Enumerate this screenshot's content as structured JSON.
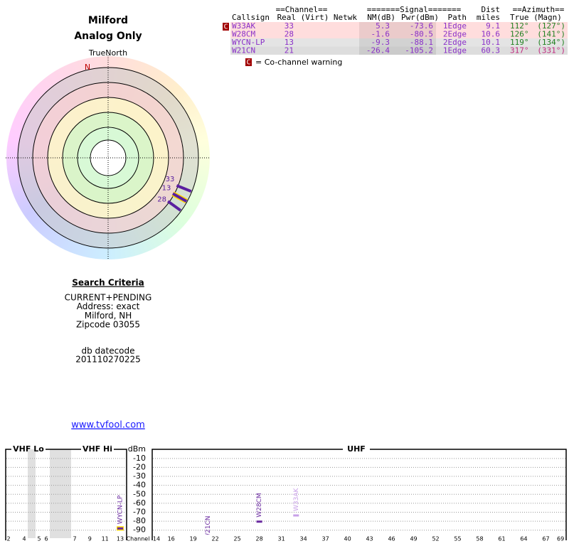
{
  "header": {
    "title": "Milford",
    "subtitle": "Analog Only"
  },
  "polar": {
    "north_label": "TrueNorth",
    "n": "N"
  },
  "search": {
    "title": "Search Criteria",
    "lines": [
      "CURRENT+PENDING",
      "Address: exact",
      "Milford, NH",
      "Zipcode 03055"
    ],
    "datecode_label": "db datecode",
    "datecode": "201110270225"
  },
  "link": "www.tvfool.com",
  "table": {
    "group_headers": [
      "==Channel==",
      "=======Signal=======",
      "Dist",
      "==Azimuth=="
    ],
    "headers": [
      "Callsign",
      "Real (Virt)",
      "Netwk",
      "NM(dB)",
      "Pwr(dBm)",
      "Path",
      "miles",
      "True (Magn)"
    ],
    "rows": [
      [
        "W33AK",
        33,
        5.3,
        -73.6,
        "1Edge",
        9.1,
        {
          "value": 112,
          "label": "112°"
        },
        "(127°)"
      ],
      [
        "W28CM",
        28,
        -1.6,
        -80.5,
        "2Edge",
        10.6,
        {
          "value": 126,
          "label": "126°"
        },
        "(141°)"
      ],
      [
        "WYCN-LP",
        13,
        -9.3,
        -88.1,
        "2Edge",
        10.1,
        {
          "value": 119,
          "label": "119°"
        },
        "(134°)"
      ],
      [
        "W21CN",
        21,
        -26.4,
        -105.2,
        "1Edge",
        60.3,
        {
          "value": 317,
          "label": "317°"
        },
        "(331°)"
      ]
    ],
    "warning_marker": "C",
    "legend": "= Co-channel warning"
  },
  "spectrum": {
    "sections": [
      "VHF Lo",
      "VHF Hi",
      "UHF"
    ],
    "y_label": "dBm",
    "x_label": "Channel",
    "ylim": [
      -95,
      -3
    ],
    "yticks": [
      -10,
      -20,
      -30,
      -40,
      -50,
      -60,
      -70,
      -80,
      -90
    ],
    "channel_ticks_vhf": [
      2,
      4,
      5,
      6,
      7,
      9,
      11,
      13
    ],
    "channel_ticks_uhf": [
      14,
      16,
      19,
      22,
      25,
      28,
      31,
      34,
      37,
      40,
      43,
      46,
      49,
      52,
      55,
      58,
      61,
      64,
      67,
      69
    ]
  }
}
